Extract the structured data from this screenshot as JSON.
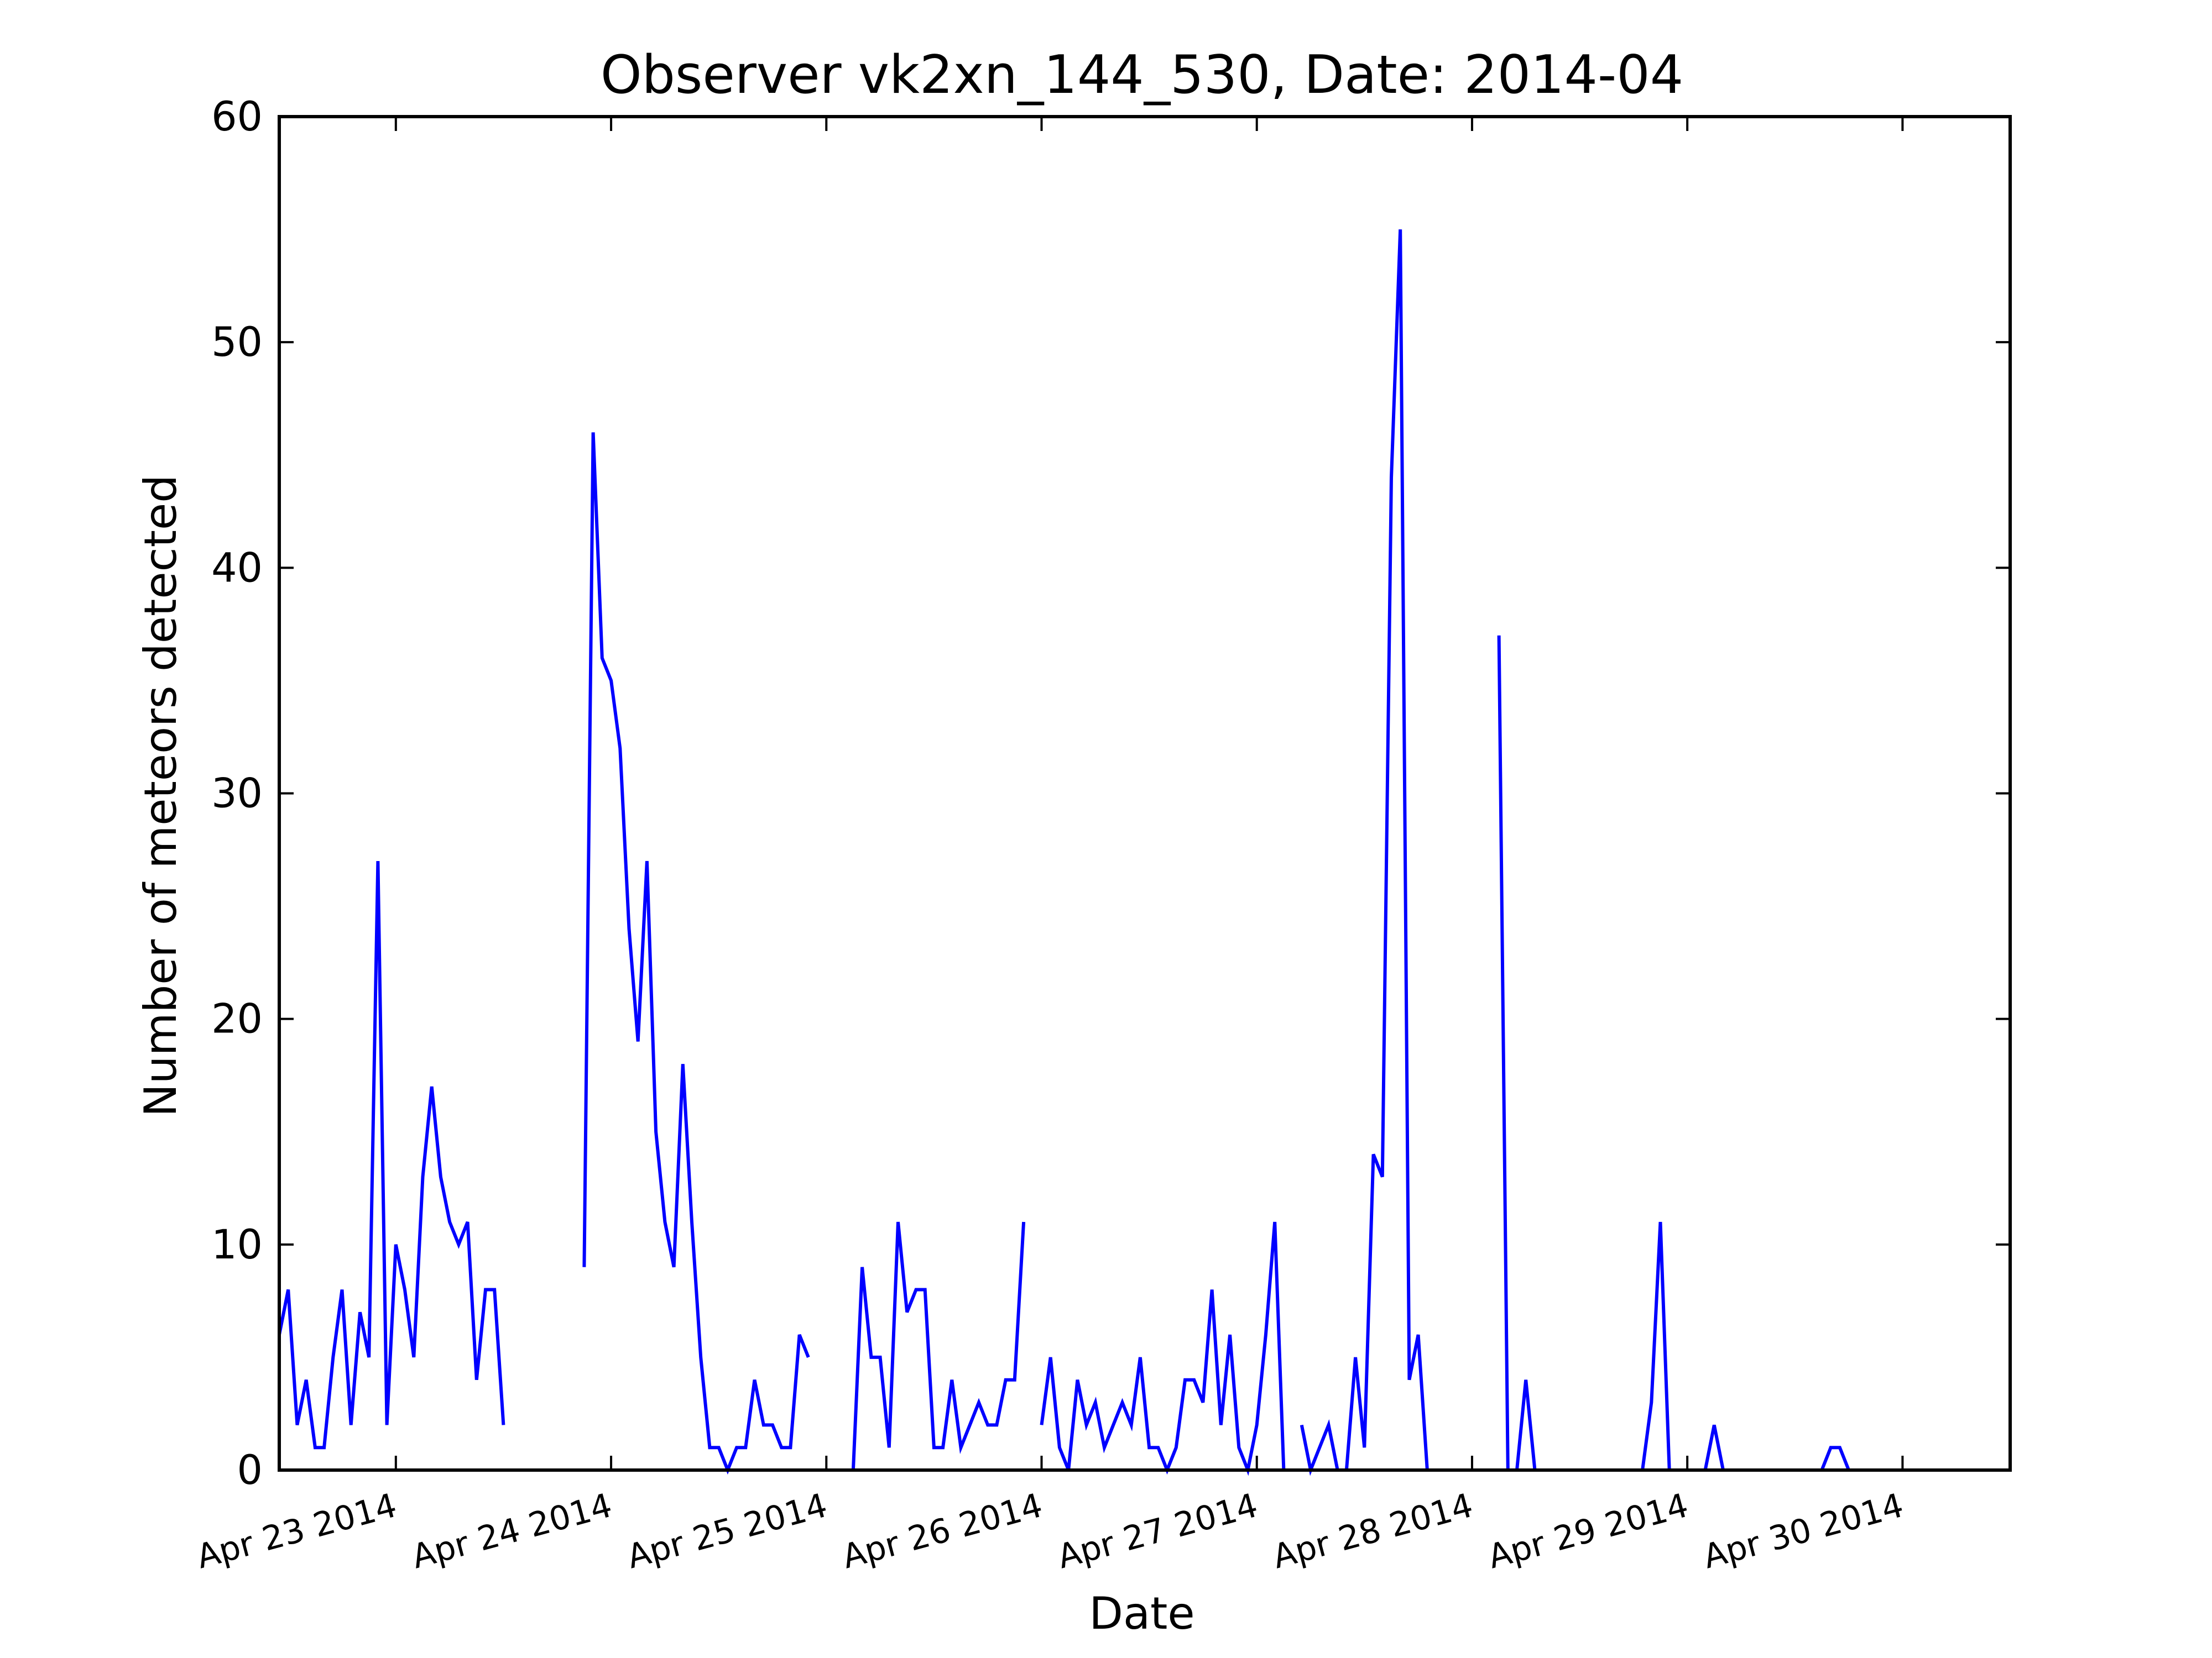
{
  "chart_data": {
    "type": "line",
    "title": "Observer vk2xn_144_530, Date: 2014-04",
    "xlabel": "Date",
    "ylabel": "Number of meteors detected",
    "ylim": [
      0,
      60
    ],
    "y_ticks": [
      0,
      10,
      20,
      30,
      40,
      50,
      60
    ],
    "xlim": [
      "2014-04-22 11:00",
      "2014-04-30 12:00"
    ],
    "x_ticks": [
      {
        "date": "2014-04-23",
        "label": "Apr 23 2014"
      },
      {
        "date": "2014-04-24",
        "label": "Apr 24 2014"
      },
      {
        "date": "2014-04-25",
        "label": "Apr 25 2014"
      },
      {
        "date": "2014-04-26",
        "label": "Apr 26 2014"
      },
      {
        "date": "2014-04-27",
        "label": "Apr 27 2014"
      },
      {
        "date": "2014-04-28",
        "label": "Apr 28 2014"
      },
      {
        "date": "2014-04-29",
        "label": "Apr 29 2014"
      },
      {
        "date": "2014-04-30",
        "label": "Apr 30 2014"
      }
    ],
    "grid": false,
    "legend": "none",
    "line_color": "#0000ff",
    "series": [
      {
        "segments": [
          [
            [
              "2014-04-22 11:00",
              6
            ],
            [
              "2014-04-22 12:00",
              8
            ],
            [
              "2014-04-22 13:00",
              2
            ],
            [
              "2014-04-22 14:00",
              4
            ],
            [
              "2014-04-22 15:00",
              1
            ],
            [
              "2014-04-22 16:00",
              1
            ],
            [
              "2014-04-22 17:00",
              5
            ],
            [
              "2014-04-22 18:00",
              8
            ],
            [
              "2014-04-22 19:00",
              2
            ],
            [
              "2014-04-22 20:00",
              7
            ],
            [
              "2014-04-22 21:00",
              5
            ],
            [
              "2014-04-22 22:00",
              27
            ],
            [
              "2014-04-22 23:00",
              2
            ],
            [
              "2014-04-23 00:00",
              10
            ],
            [
              "2014-04-23 01:00",
              8
            ],
            [
              "2014-04-23 02:00",
              5
            ],
            [
              "2014-04-23 03:00",
              13
            ],
            [
              "2014-04-23 04:00",
              17
            ],
            [
              "2014-04-23 05:00",
              13
            ],
            [
              "2014-04-23 06:00",
              11
            ],
            [
              "2014-04-23 07:00",
              10
            ],
            [
              "2014-04-23 08:00",
              11
            ],
            [
              "2014-04-23 09:00",
              4
            ],
            [
              "2014-04-23 10:00",
              8
            ],
            [
              "2014-04-23 11:00",
              8
            ],
            [
              "2014-04-23 12:00",
              2
            ]
          ],
          [
            [
              "2014-04-23 21:00",
              9
            ],
            [
              "2014-04-23 22:00",
              46
            ],
            [
              "2014-04-23 23:00",
              36
            ],
            [
              "2014-04-24 00:00",
              35
            ],
            [
              "2014-04-24 01:00",
              32
            ],
            [
              "2014-04-24 02:00",
              24
            ],
            [
              "2014-04-24 03:00",
              19
            ],
            [
              "2014-04-24 04:00",
              27
            ],
            [
              "2014-04-24 05:00",
              15
            ],
            [
              "2014-04-24 06:00",
              11
            ],
            [
              "2014-04-24 07:00",
              9
            ],
            [
              "2014-04-24 08:00",
              18
            ],
            [
              "2014-04-24 09:00",
              11
            ],
            [
              "2014-04-24 10:00",
              5
            ],
            [
              "2014-04-24 11:00",
              1
            ],
            [
              "2014-04-24 12:00",
              1
            ],
            [
              "2014-04-24 13:00",
              0
            ],
            [
              "2014-04-24 14:00",
              1
            ],
            [
              "2014-04-24 15:00",
              1
            ],
            [
              "2014-04-24 16:00",
              4
            ],
            [
              "2014-04-24 17:00",
              2
            ],
            [
              "2014-04-24 18:00",
              2
            ],
            [
              "2014-04-24 19:00",
              1
            ],
            [
              "2014-04-24 20:00",
              1
            ],
            [
              "2014-04-24 21:00",
              6
            ],
            [
              "2014-04-24 22:00",
              5
            ]
          ],
          [
            [
              "2014-04-25 03:00",
              0
            ],
            [
              "2014-04-25 04:00",
              9
            ],
            [
              "2014-04-25 05:00",
              5
            ],
            [
              "2014-04-25 06:00",
              5
            ],
            [
              "2014-04-25 07:00",
              1
            ],
            [
              "2014-04-25 08:00",
              11
            ],
            [
              "2014-04-25 09:00",
              7
            ],
            [
              "2014-04-25 10:00",
              8
            ],
            [
              "2014-04-25 11:00",
              8
            ],
            [
              "2014-04-25 12:00",
              1
            ],
            [
              "2014-04-25 13:00",
              1
            ],
            [
              "2014-04-25 14:00",
              4
            ],
            [
              "2014-04-25 15:00",
              1
            ],
            [
              "2014-04-25 16:00",
              2
            ],
            [
              "2014-04-25 17:00",
              3
            ],
            [
              "2014-04-25 18:00",
              2
            ],
            [
              "2014-04-25 19:00",
              2
            ],
            [
              "2014-04-25 20:00",
              4
            ],
            [
              "2014-04-25 21:00",
              4
            ],
            [
              "2014-04-25 22:00",
              11
            ]
          ],
          [
            [
              "2014-04-26 00:00",
              2
            ],
            [
              "2014-04-26 01:00",
              5
            ],
            [
              "2014-04-26 02:00",
              1
            ],
            [
              "2014-04-26 03:00",
              0
            ],
            [
              "2014-04-26 04:00",
              4
            ],
            [
              "2014-04-26 05:00",
              2
            ],
            [
              "2014-04-26 06:00",
              3
            ],
            [
              "2014-04-26 07:00",
              1
            ],
            [
              "2014-04-26 08:00",
              2
            ],
            [
              "2014-04-26 09:00",
              3
            ],
            [
              "2014-04-26 10:00",
              2
            ],
            [
              "2014-04-26 11:00",
              5
            ],
            [
              "2014-04-26 12:00",
              1
            ],
            [
              "2014-04-26 13:00",
              1
            ],
            [
              "2014-04-26 14:00",
              0
            ],
            [
              "2014-04-26 15:00",
              1
            ],
            [
              "2014-04-26 16:00",
              4
            ],
            [
              "2014-04-26 17:00",
              4
            ],
            [
              "2014-04-26 18:00",
              3
            ],
            [
              "2014-04-26 19:00",
              8
            ],
            [
              "2014-04-26 20:00",
              2
            ],
            [
              "2014-04-26 21:00",
              6
            ],
            [
              "2014-04-26 22:00",
              1
            ],
            [
              "2014-04-26 23:00",
              0
            ],
            [
              "2014-04-27 00:00",
              2
            ],
            [
              "2014-04-27 01:00",
              6
            ],
            [
              "2014-04-27 02:00",
              11
            ],
            [
              "2014-04-27 03:00",
              0
            ]
          ],
          [
            [
              "2014-04-27 05:00",
              2
            ],
            [
              "2014-04-27 06:00",
              0
            ],
            [
              "2014-04-27 07:00",
              1
            ],
            [
              "2014-04-27 08:00",
              2
            ],
            [
              "2014-04-27 09:00",
              0
            ],
            [
              "2014-04-27 10:00",
              0
            ],
            [
              "2014-04-27 11:00",
              5
            ],
            [
              "2014-04-27 12:00",
              1
            ],
            [
              "2014-04-27 13:00",
              14
            ],
            [
              "2014-04-27 14:00",
              13
            ],
            [
              "2014-04-27 15:00",
              44
            ],
            [
              "2014-04-27 16:00",
              55
            ],
            [
              "2014-04-27 17:00",
              4
            ],
            [
              "2014-04-27 18:00",
              6
            ],
            [
              "2014-04-27 19:00",
              0
            ]
          ],
          [
            [
              "2014-04-28 03:00",
              37
            ],
            [
              "2014-04-28 04:00",
              0
            ],
            [
              "2014-04-28 05:00",
              0
            ],
            [
              "2014-04-28 06:00",
              4
            ],
            [
              "2014-04-28 07:00",
              0
            ],
            [
              "2014-04-28 08:00",
              0
            ],
            [
              "2014-04-28 09:00",
              0
            ],
            [
              "2014-04-28 10:00",
              0
            ],
            [
              "2014-04-28 11:00",
              0
            ],
            [
              "2014-04-28 12:00",
              0
            ],
            [
              "2014-04-28 13:00",
              0
            ],
            [
              "2014-04-28 14:00",
              0
            ],
            [
              "2014-04-28 15:00",
              0
            ],
            [
              "2014-04-28 16:00",
              0
            ],
            [
              "2014-04-28 17:00",
              0
            ],
            [
              "2014-04-28 18:00",
              0
            ],
            [
              "2014-04-28 19:00",
              0
            ],
            [
              "2014-04-28 20:00",
              3
            ],
            [
              "2014-04-28 21:00",
              11
            ],
            [
              "2014-04-28 22:00",
              0
            ],
            [
              "2014-04-28 23:00",
              0
            ],
            [
              "2014-04-29 00:00",
              0
            ],
            [
              "2014-04-29 01:00",
              0
            ],
            [
              "2014-04-29 02:00",
              0
            ],
            [
              "2014-04-29 03:00",
              2
            ],
            [
              "2014-04-29 04:00",
              0
            ],
            [
              "2014-04-29 05:00",
              0
            ],
            [
              "2014-04-29 06:00",
              0
            ],
            [
              "2014-04-29 07:00",
              0
            ],
            [
              "2014-04-29 08:00",
              0
            ],
            [
              "2014-04-29 09:00",
              0
            ],
            [
              "2014-04-29 10:00",
              0
            ],
            [
              "2014-04-29 11:00",
              0
            ],
            [
              "2014-04-29 12:00",
              0
            ],
            [
              "2014-04-29 13:00",
              0
            ],
            [
              "2014-04-29 14:00",
              0
            ],
            [
              "2014-04-29 15:00",
              0
            ],
            [
              "2014-04-29 16:00",
              1
            ],
            [
              "2014-04-29 17:00",
              1
            ],
            [
              "2014-04-29 18:00",
              0
            ],
            [
              "2014-04-29 19:00",
              0
            ],
            [
              "2014-04-29 20:00",
              0
            ],
            [
              "2014-04-29 21:00",
              0
            ],
            [
              "2014-04-29 22:00",
              0
            ],
            [
              "2014-04-29 23:00",
              0
            ],
            [
              "2014-04-30 00:00",
              0
            ],
            [
              "2014-04-30 01:00",
              0
            ],
            [
              "2014-04-30 02:00",
              0
            ],
            [
              "2014-04-30 03:00",
              0
            ],
            [
              "2014-04-30 04:00",
              0
            ],
            [
              "2014-04-30 05:00",
              0
            ],
            [
              "2014-04-30 06:00",
              0
            ],
            [
              "2014-04-30 07:00",
              0
            ],
            [
              "2014-04-30 08:00",
              0
            ],
            [
              "2014-04-30 09:00",
              0
            ],
            [
              "2014-04-30 10:00",
              0
            ],
            [
              "2014-04-30 11:00",
              0
            ],
            [
              "2014-04-30 12:00",
              0
            ]
          ]
        ]
      }
    ]
  }
}
